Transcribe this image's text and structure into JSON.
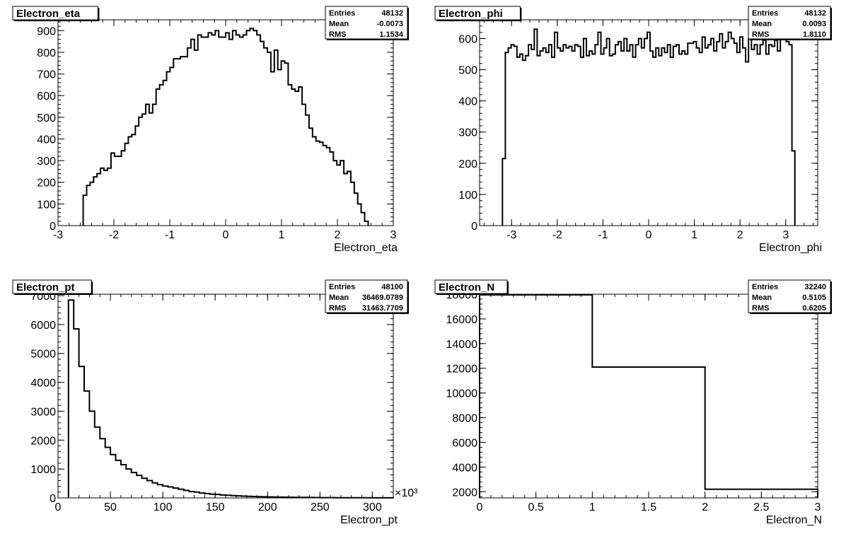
{
  "chart_data": [
    {
      "type": "bar",
      "title": "Electron_eta",
      "xlabel": "Electron_eta",
      "ylabel": "",
      "xlim": [
        -3,
        3
      ],
      "ylim": [
        0,
        950
      ],
      "xticks": [
        "-3",
        "-2",
        "-1",
        "0",
        "1",
        "2",
        "3"
      ],
      "yticks": [
        "0",
        "100",
        "200",
        "300",
        "400",
        "500",
        "600",
        "700",
        "800",
        "900"
      ],
      "x_multiplier": "",
      "stats": {
        "entries_label": "Entries",
        "entries": "48132",
        "mean_label": "Mean",
        "mean": "-0.0073",
        "rms_label": "RMS",
        "rms": "1.1534"
      },
      "bin_edges_range": [
        -2.55,
        2.55
      ],
      "values": [
        140,
        185,
        200,
        225,
        240,
        265,
        255,
        265,
        335,
        320,
        320,
        345,
        380,
        410,
        420,
        460,
        500,
        515,
        560,
        520,
        560,
        630,
        650,
        670,
        710,
        730,
        770,
        770,
        780,
        780,
        820,
        860,
        810,
        880,
        870,
        870,
        890,
        880,
        900,
        870,
        870,
        890,
        860,
        900,
        880,
        870,
        880,
        900,
        910,
        900,
        880,
        850,
        820,
        800,
        710,
        810,
        720,
        760,
        750,
        650,
        630,
        620,
        640,
        560,
        510,
        450,
        410,
        390,
        385,
        370,
        360,
        340,
        300,
        280,
        300,
        240,
        250,
        200,
        150,
        100,
        60,
        20
      ],
      "grid": false
    },
    {
      "type": "bar",
      "title": "Electron_phi",
      "xlabel": "Electron_phi",
      "ylabel": "",
      "xlim": [
        -3.7,
        3.7
      ],
      "ylim": [
        0,
        660
      ],
      "xticks": [
        "-3",
        "-2",
        "-1",
        "0",
        "1",
        "2",
        "3"
      ],
      "yticks": [
        "0",
        "100",
        "200",
        "300",
        "400",
        "500",
        "600"
      ],
      "x_multiplier": "",
      "stats": {
        "entries_label": "Entries",
        "entries": "48132",
        "mean_label": "Mean",
        "mean": "0.0093",
        "rms_label": "RMS",
        "rms": "1.8110"
      },
      "bin_edges_range": [
        -3.2,
        3.2
      ],
      "values": [
        215,
        555,
        570,
        580,
        575,
        540,
        550,
        530,
        545,
        580,
        565,
        630,
        545,
        560,
        570,
        555,
        580,
        540,
        620,
        570,
        560,
        580,
        570,
        575,
        560,
        580,
        575,
        540,
        600,
        545,
        560,
        550,
        580,
        620,
        550,
        570,
        600,
        545,
        550,
        580,
        590,
        560,
        600,
        560,
        580,
        540,
        580,
        600,
        570,
        600,
        620,
        560,
        540,
        570,
        545,
        570,
        555,
        580,
        540,
        575,
        580,
        550,
        560,
        550,
        585,
        585,
        590,
        570,
        555,
        605,
        570,
        580,
        600,
        560,
        590,
        615,
        570,
        590,
        620,
        600,
        585,
        555,
        605,
        570,
        525,
        600,
        565,
        580,
        550,
        580,
        595,
        550,
        580,
        575,
        595,
        560,
        640,
        600,
        590,
        580,
        240
      ],
      "grid": false
    },
    {
      "type": "bar",
      "title": "Electron_pt",
      "xlabel": "Electron_pt",
      "ylabel": "",
      "xlim": [
        0,
        320
      ],
      "ylim": [
        0,
        7050
      ],
      "xticks": [
        "0",
        "50",
        "100",
        "150",
        "200",
        "250",
        "300"
      ],
      "yticks": [
        "0",
        "1000",
        "2000",
        "3000",
        "4000",
        "5000",
        "6000",
        "7000"
      ],
      "x_multiplier": "×10³",
      "stats": {
        "entries_label": "Entries",
        "entries": "48100",
        "mean_label": "Mean",
        "mean": "36469.0789",
        "rms_label": "RMS",
        "rms": "31463.7709"
      },
      "bin_edges_range": [
        10,
        320
      ],
      "values": [
        6850,
        5850,
        4550,
        3700,
        3000,
        2450,
        2050,
        1750,
        1500,
        1300,
        1150,
        1000,
        880,
        780,
        680,
        600,
        520,
        460,
        410,
        380,
        340,
        300,
        260,
        220,
        200,
        170,
        150,
        130,
        120,
        100,
        90,
        80,
        70,
        60,
        55,
        50,
        45,
        40,
        35,
        30,
        28,
        25,
        22,
        20,
        18,
        16,
        14,
        12,
        11,
        10,
        9,
        8,
        7,
        6,
        5,
        5,
        4,
        4,
        3,
        3,
        3,
        2
      ],
      "grid": false
    },
    {
      "type": "bar",
      "title": "Electron_N",
      "xlabel": "Electron_N",
      "ylabel": "",
      "xlim": [
        0,
        3
      ],
      "ylim": [
        1500,
        18000
      ],
      "xticks": [
        "0",
        "0.5",
        "1",
        "1.5",
        "2",
        "2.5",
        "3"
      ],
      "yticks": [
        "2000",
        "4000",
        "6000",
        "8000",
        "10000",
        "12000",
        "14000",
        "16000",
        "18000"
      ],
      "x_multiplier": "",
      "stats": {
        "entries_label": "Entries",
        "entries": "32240",
        "mean_label": "Mean",
        "mean": "0.5105",
        "rms_label": "RMS",
        "rms": "0.6205"
      },
      "bin_edges_range": [
        0,
        3
      ],
      "values": [
        17950,
        12100,
        2200
      ],
      "grid": false
    }
  ]
}
